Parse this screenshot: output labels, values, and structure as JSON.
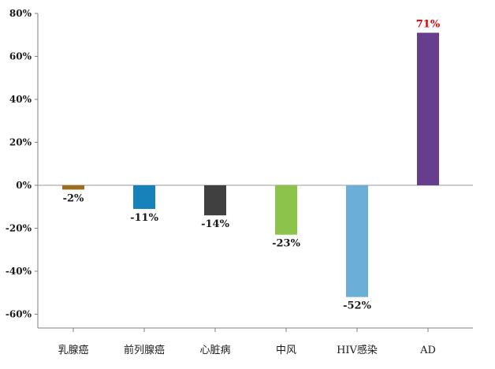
{
  "chart_data": {
    "type": "bar",
    "categories": [
      "乳腺癌",
      "前列腺癌",
      "心脏病",
      "中风",
      "HIV感染",
      "AD"
    ],
    "values": [
      -2,
      -11,
      -14,
      -23,
      -52,
      71
    ],
    "data_labels": [
      "-2%",
      "-11%",
      "-14%",
      "-23%",
      "-52%",
      "71%"
    ],
    "bar_colors": [
      "#9C6E1B",
      "#1782B9",
      "#404040",
      "#8CC34A",
      "#6BAED6",
      "#673E8E"
    ],
    "highlight_label_color": "#E00000",
    "highlight_index": 5,
    "y_ticks": [
      80,
      60,
      40,
      20,
      0,
      -20,
      -40,
      -60
    ],
    "y_tick_labels": [
      "80%",
      "60%",
      "40%",
      "20%",
      "0%",
      "-20%",
      "-40%",
      "-60%"
    ],
    "ylim": [
      -66,
      80
    ],
    "grid": false,
    "title": "",
    "xlabel": "",
    "ylabel": ""
  }
}
